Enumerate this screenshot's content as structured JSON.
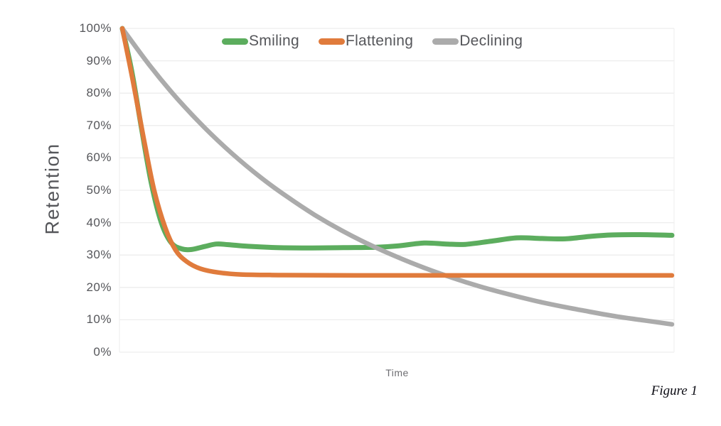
{
  "caption": "Figure 1",
  "chart_data": {
    "type": "line",
    "title": "",
    "xlabel": "Time",
    "ylabel": "Retention",
    "x_range": [
      0,
      1
    ],
    "ylim": [
      0,
      100
    ],
    "grid": "horizontal",
    "grid_color": "#ededed",
    "axis_edge_color": "#f0f0f0",
    "legend_position": "top-center",
    "yticks": [
      {
        "value": 100,
        "label": "100%"
      },
      {
        "value": 90,
        "label": "90%"
      },
      {
        "value": 80,
        "label": "80%"
      },
      {
        "value": 70,
        "label": "70%"
      },
      {
        "value": 60,
        "label": "60%"
      },
      {
        "value": 50,
        "label": "50%"
      },
      {
        "value": 40,
        "label": "40%"
      },
      {
        "value": 30,
        "label": "30%"
      },
      {
        "value": 20,
        "label": "20%"
      },
      {
        "value": 10,
        "label": "10%"
      },
      {
        "value": 0,
        "label": "0%"
      }
    ],
    "series": [
      {
        "name": "Smiling",
        "color": "#5cad5e",
        "stroke_width": 7,
        "points": [
          [
            0,
            100
          ],
          [
            0.017,
            87
          ],
          [
            0.035,
            69
          ],
          [
            0.053,
            52
          ],
          [
            0.071,
            40
          ],
          [
            0.089,
            33.8
          ],
          [
            0.108,
            31.9
          ],
          [
            0.126,
            31.7
          ],
          [
            0.149,
            32.6
          ],
          [
            0.171,
            33.4
          ],
          [
            0.193,
            33.2
          ],
          [
            0.229,
            32.7
          ],
          [
            0.281,
            32.3
          ],
          [
            0.346,
            32.2
          ],
          [
            0.411,
            32.3
          ],
          [
            0.462,
            32.4
          ],
          [
            0.501,
            32.8
          ],
          [
            0.549,
            33.7
          ],
          [
            0.589,
            33.4
          ],
          [
            0.624,
            33.3
          ],
          [
            0.672,
            34.3
          ],
          [
            0.718,
            35.3
          ],
          [
            0.763,
            35.1
          ],
          [
            0.806,
            35.0
          ],
          [
            0.854,
            35.8
          ],
          [
            0.892,
            36.2
          ],
          [
            0.941,
            36.3
          ],
          [
            1,
            36.1
          ]
        ]
      },
      {
        "name": "Flattening",
        "color": "#e07b3c",
        "stroke_width": 6.5,
        "points": [
          [
            0,
            100
          ],
          [
            0.019,
            84
          ],
          [
            0.039,
            66
          ],
          [
            0.058,
            50
          ],
          [
            0.078,
            38.5
          ],
          [
            0.097,
            31.5
          ],
          [
            0.117,
            28.0
          ],
          [
            0.142,
            25.8
          ],
          [
            0.175,
            24.6
          ],
          [
            0.216,
            24.0
          ],
          [
            0.294,
            23.8
          ],
          [
            0.424,
            23.7
          ],
          [
            0.585,
            23.7
          ],
          [
            0.786,
            23.7
          ],
          [
            1,
            23.7
          ]
        ]
      },
      {
        "name": "Declining",
        "color": "#ababab",
        "stroke_width": 6.5,
        "points": [
          [
            0,
            100
          ],
          [
            0.05,
            88.5
          ],
          [
            0.1,
            78.3
          ],
          [
            0.15,
            69.3
          ],
          [
            0.2,
            61.3
          ],
          [
            0.25,
            54.2
          ],
          [
            0.3,
            48.0
          ],
          [
            0.35,
            42.4
          ],
          [
            0.4,
            37.5
          ],
          [
            0.45,
            33.2
          ],
          [
            0.5,
            29.4
          ],
          [
            0.55,
            26.0
          ],
          [
            0.6,
            23.0
          ],
          [
            0.65,
            20.3
          ],
          [
            0.7,
            18.0
          ],
          [
            0.75,
            15.9
          ],
          [
            0.8,
            14.1
          ],
          [
            0.85,
            12.5
          ],
          [
            0.9,
            11.0
          ],
          [
            0.95,
            9.8
          ],
          [
            1,
            8.6
          ]
        ]
      }
    ],
    "draw_order": [
      0,
      2,
      1
    ]
  }
}
